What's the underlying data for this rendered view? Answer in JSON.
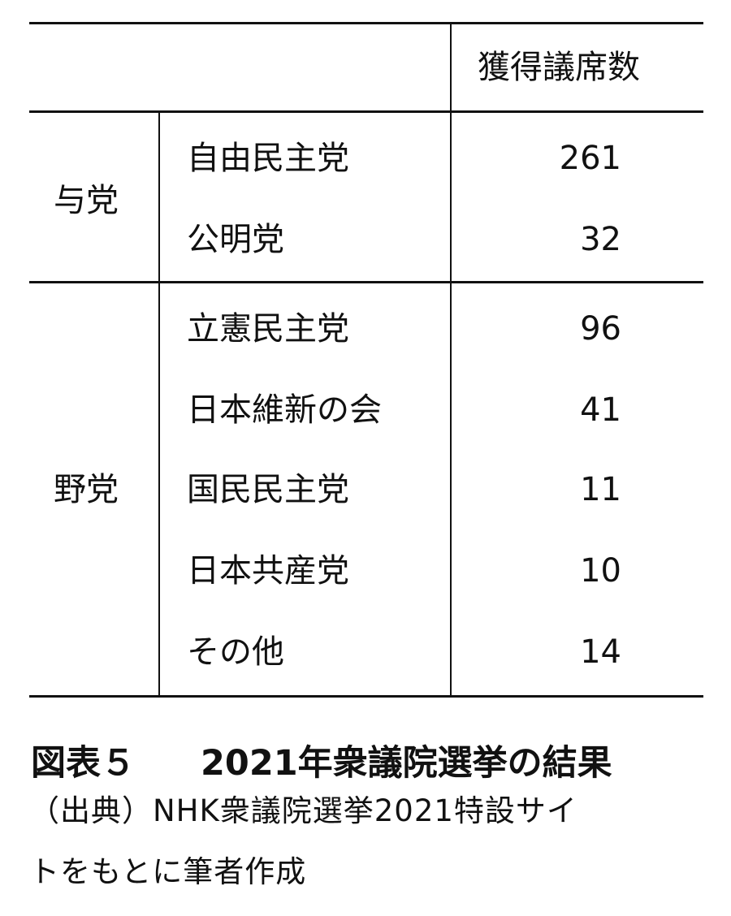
{
  "table": {
    "header": "獲得議席数",
    "groups": [
      {
        "label": "与党",
        "rows": [
          {
            "party": "自由民主党",
            "seats": "261"
          },
          {
            "party": "公明党",
            "seats": "32"
          }
        ]
      },
      {
        "label": "野党",
        "rows": [
          {
            "party": "立憲民主党",
            "seats": "96"
          },
          {
            "party": "日本維新の会",
            "seats": "41"
          },
          {
            "party": "国民民主党",
            "seats": "11"
          },
          {
            "party": "日本共産党",
            "seats": "10"
          },
          {
            "party": "その他",
            "seats": "14"
          }
        ]
      }
    ]
  },
  "caption": {
    "number": "図表５",
    "title": "2021年衆議院選挙の結果"
  },
  "source": {
    "line1": "（出典）NHK衆議院選挙2021特設サイ",
    "line2": "トをもとに筆者作成"
  }
}
